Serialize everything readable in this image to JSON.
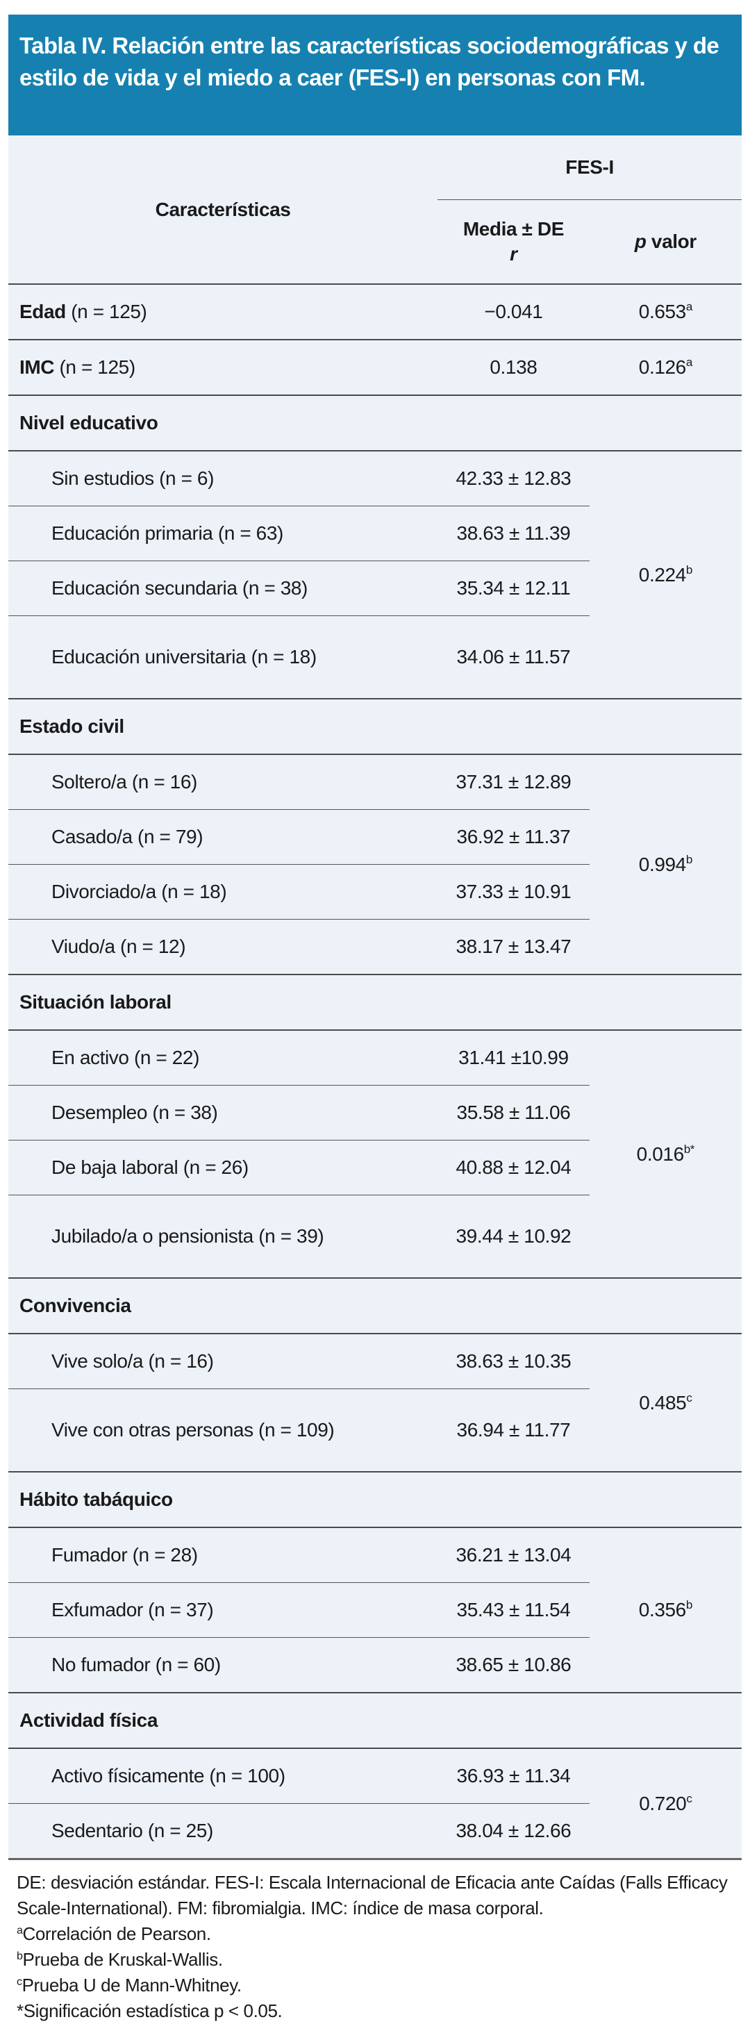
{
  "title": "Tabla IV. Relación entre las características sociodemográficas y de estilo de vida y el miedo a caer (FES-I) en personas con FM.",
  "header": {
    "characteristics": "Características",
    "group": "FES-I",
    "col_mean": "Media ± DE",
    "col_r": "r",
    "col_p_italic": "p",
    "col_p_rest": " valor"
  },
  "rows": [
    {
      "label_bold": "Edad",
      "label_rest": " (n = 125)",
      "value": "−0.041",
      "p": "0.653",
      "p_sup": "a"
    },
    {
      "label_bold": "IMC",
      "label_rest": " (n = 125)",
      "value": "0.138",
      "p": "0.126",
      "p_sup": "a"
    }
  ],
  "groups": [
    {
      "title": "Nivel educativo",
      "p": "0.224",
      "p_sup": "b",
      "items": [
        {
          "label": "Sin estudios (n = 6)",
          "value": "42.33 ± 12.83"
        },
        {
          "label": "Educación primaria (n = 63)",
          "value": "38.63 ± 11.39"
        },
        {
          "label": "Educación secundaria (n = 38)",
          "value": "35.34 ± 12.11"
        },
        {
          "label": "Educación universitaria (n = 18)",
          "value": "34.06 ± 11.57"
        }
      ]
    },
    {
      "title": "Estado civil",
      "p": "0.994",
      "p_sup": "b",
      "items": [
        {
          "label": "Soltero/a (n = 16)",
          "value": "37.31 ± 12.89"
        },
        {
          "label": "Casado/a (n = 79)",
          "value": "36.92 ± 11.37"
        },
        {
          "label": "Divorciado/a (n = 18)",
          "value": "37.33 ± 10.91"
        },
        {
          "label": "Viudo/a (n = 12)",
          "value": "38.17 ± 13.47"
        }
      ]
    },
    {
      "title": "Situación laboral",
      "p": "0.016",
      "p_sup": "b*",
      "items": [
        {
          "label": "En activo (n = 22)",
          "value": "31.41 ±10.99"
        },
        {
          "label": "Desempleo (n = 38)",
          "value": "35.58 ± 11.06"
        },
        {
          "label": "De baja laboral (n = 26)",
          "value": "40.88 ± 12.04"
        },
        {
          "label": "Jubilado/a o pensionista (n = 39)",
          "value": "39.44 ± 10.92"
        }
      ]
    },
    {
      "title": "Convivencia",
      "p": "0.485",
      "p_sup": "c",
      "items": [
        {
          "label": "Vive solo/a (n = 16)",
          "value": "38.63 ± 10.35"
        },
        {
          "label": "Vive con otras personas (n = 109)",
          "value": "36.94 ± 11.77"
        }
      ]
    },
    {
      "title": "Hábito tabáquico",
      "p": "0.356",
      "p_sup": "b",
      "items": [
        {
          "label": "Fumador (n = 28)",
          "value": "36.21 ± 13.04"
        },
        {
          "label": "Exfumador (n = 37)",
          "value": "35.43 ± 11.54"
        },
        {
          "label": "No fumador (n = 60)",
          "value": "38.65 ± 10.86"
        }
      ]
    },
    {
      "title": "Actividad física",
      "p": "0.720",
      "p_sup": "c",
      "items": [
        {
          "label": "Activo físicamente (n = 100)",
          "value": "36.93 ± 11.34"
        },
        {
          "label": "Sedentario (n = 25)",
          "value": "38.04 ± 12.66"
        }
      ]
    }
  ],
  "notes": {
    "abbrev": "DE: desviación estándar. FES-I: Escala Internacional de Eficacia ante Caídas (Falls Efficacy Scale-International). FM: fibromialgia. IMC: índice de masa corporal.",
    "a": {
      "sup": "a",
      "text": "Correlación de Pearson."
    },
    "b": {
      "sup": "b",
      "text": "Prueba de Kruskal-Wallis."
    },
    "c": {
      "sup": "c",
      "text": "Prueba U de Mann-Whitney."
    },
    "star": "*Significación estadística p < 0.05."
  },
  "colors": {
    "header_bg": "#1681b0",
    "table_bg": "#edf1f8"
  }
}
